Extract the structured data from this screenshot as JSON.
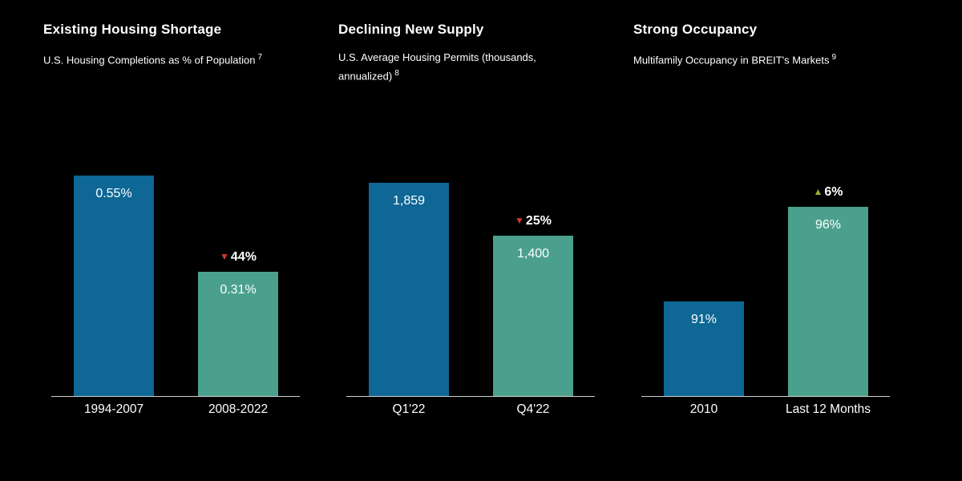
{
  "colors": {
    "background": "#000000",
    "text": "#ffffff",
    "bar_primary": "#0e6795",
    "bar_secondary": "#4aa08d",
    "decrease": "#d23b2f",
    "increase": "#93b32b",
    "baseline": "#d0d0d0"
  },
  "chart_data": [
    {
      "type": "bar",
      "title": "Existing Housing Shortage",
      "subtitle": "U.S. Housing Completions as % of Population",
      "footnote": "7",
      "categories": [
        "1994-2007",
        "2008-2022"
      ],
      "values": [
        0.55,
        0.31
      ],
      "value_labels": [
        "0.55%",
        "0.31%"
      ],
      "change_annotation": {
        "bar_index": 1,
        "direction": "down",
        "glyph": "▼",
        "label": "44%"
      },
      "ylim": [
        0,
        0.6
      ],
      "grid": false,
      "legend": false
    },
    {
      "type": "bar",
      "title": "Declining New Supply",
      "subtitle": "U.S. Average Housing Permits (thousands, annualized)",
      "footnote": "8",
      "categories": [
        "Q1'22",
        "Q4'22"
      ],
      "values": [
        1859,
        1400
      ],
      "value_labels": [
        "1,859",
        "1,400"
      ],
      "change_annotation": {
        "bar_index": 1,
        "direction": "down",
        "glyph": "▼",
        "label": "25%"
      },
      "ylim": [
        0,
        2100
      ],
      "grid": false,
      "legend": false
    },
    {
      "type": "bar",
      "title": "Strong Occupancy",
      "subtitle": "Multifamily Occupancy in BREIT's Markets",
      "footnote": "9",
      "categories": [
        "2010",
        "Last 12 Months"
      ],
      "values": [
        91,
        96
      ],
      "value_labels": [
        "91%",
        "96%"
      ],
      "change_annotation": {
        "bar_index": 1,
        "direction": "up",
        "glyph": "▲",
        "label": "6%"
      },
      "ylim": [
        86,
        98.7
      ],
      "grid": false,
      "legend": false
    }
  ]
}
